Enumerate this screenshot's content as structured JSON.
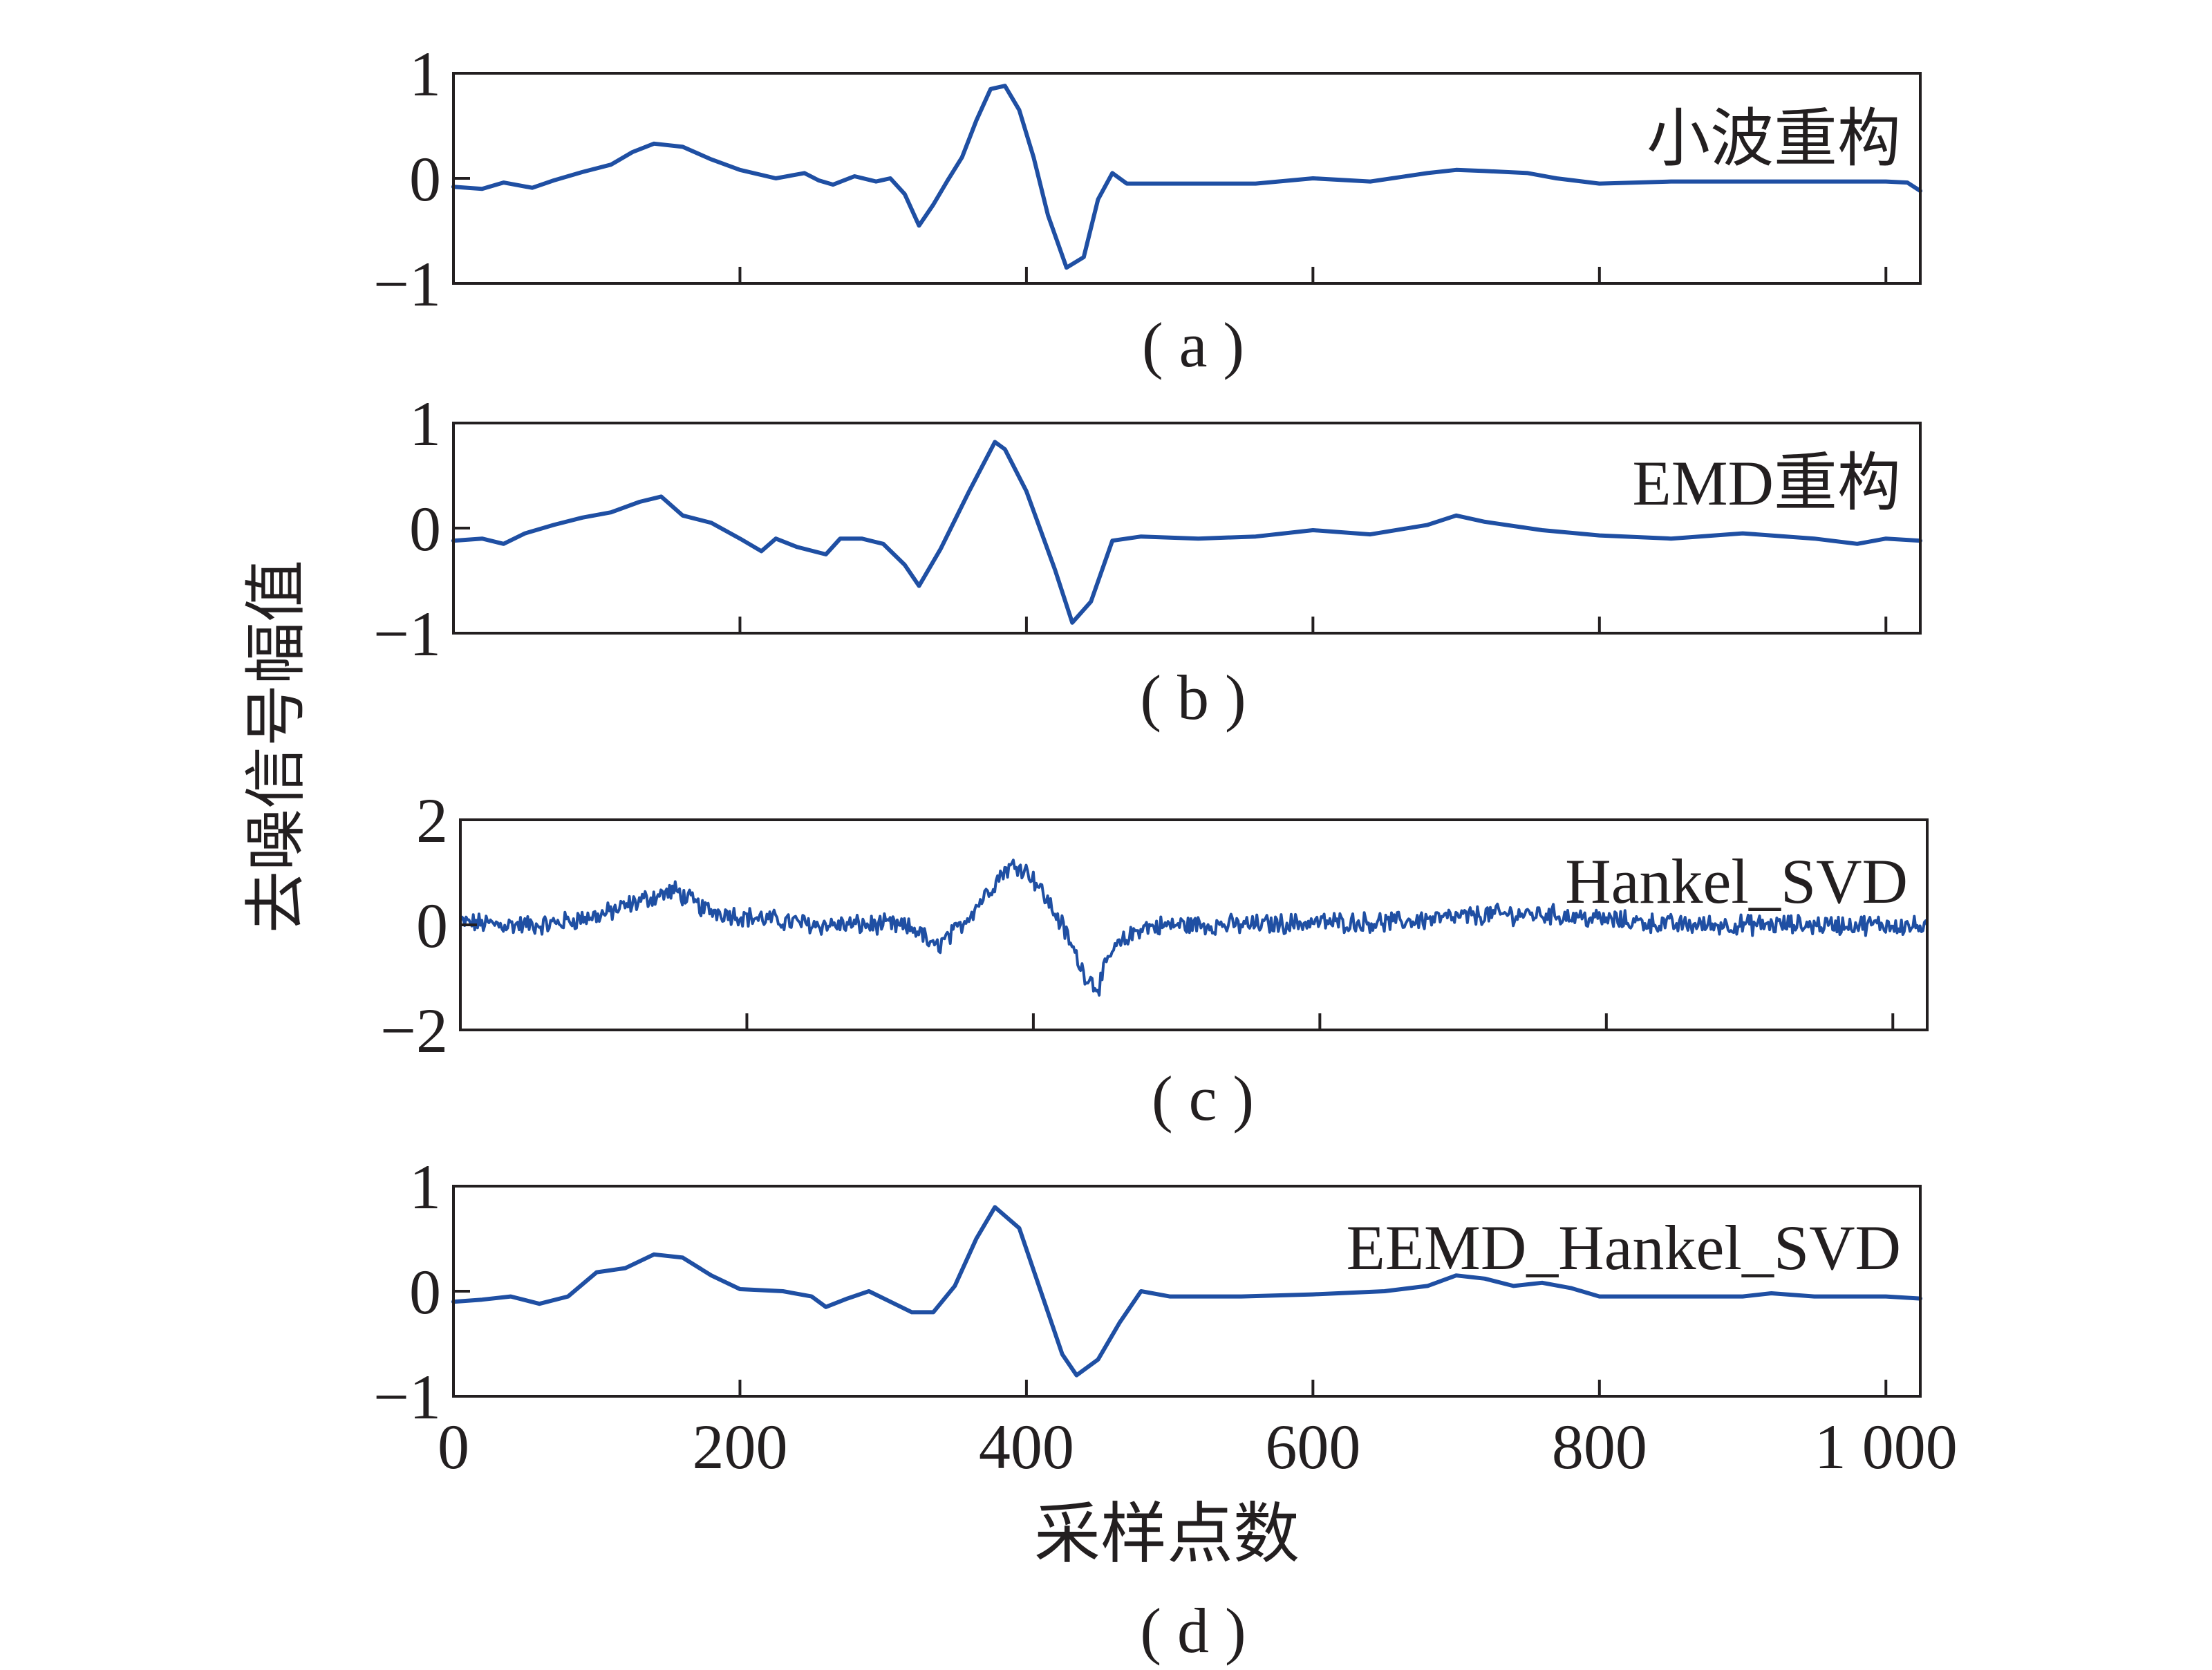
{
  "figure": {
    "xlabel": "采样点数",
    "ylabel": "去噪信号幅值",
    "line_color": "#1f4fa3"
  },
  "chart_data": [
    {
      "type": "line",
      "caption": "( a )",
      "title": "小波重构",
      "xlim": [
        0,
        1024
      ],
      "ylim": [
        -1,
        1
      ],
      "xticks": [
        0,
        200,
        400,
        600,
        800,
        1000
      ],
      "yticks": [
        -1,
        0,
        1
      ],
      "ytick_labels": [
        "−1",
        "0",
        "1"
      ],
      "noisy": false,
      "x": [
        0,
        20,
        35,
        55,
        70,
        90,
        110,
        125,
        140,
        160,
        180,
        200,
        225,
        245,
        255,
        265,
        280,
        295,
        305,
        315,
        325,
        335,
        345,
        355,
        365,
        375,
        385,
        395,
        405,
        415,
        428,
        440,
        450,
        460,
        470,
        490,
        520,
        560,
        600,
        640,
        680,
        700,
        720,
        750,
        770,
        800,
        850,
        900,
        950,
        1000,
        1015,
        1024
      ],
      "y": [
        -0.08,
        -0.1,
        -0.04,
        -0.09,
        -0.02,
        0.06,
        0.13,
        0.25,
        0.33,
        0.3,
        0.18,
        0.08,
        0.0,
        0.05,
        -0.02,
        -0.06,
        0.02,
        -0.03,
        0.0,
        -0.15,
        -0.45,
        -0.25,
        -0.02,
        0.2,
        0.55,
        0.85,
        0.88,
        0.65,
        0.2,
        -0.35,
        -0.85,
        -0.75,
        -0.2,
        0.05,
        -0.05,
        -0.05,
        -0.05,
        -0.05,
        0.0,
        -0.03,
        0.05,
        0.08,
        0.07,
        0.05,
        0.0,
        -0.05,
        -0.03,
        -0.03,
        -0.03,
        -0.03,
        -0.04,
        -0.12
      ]
    },
    {
      "type": "line",
      "caption": "( b )",
      "title": "EMD重构",
      "xlim": [
        0,
        1024
      ],
      "ylim": [
        -1,
        1
      ],
      "xticks": [
        0,
        200,
        400,
        600,
        800,
        1000
      ],
      "yticks": [
        -1,
        0,
        1
      ],
      "ytick_labels": [
        "−1",
        "0",
        "1"
      ],
      "noisy": false,
      "x": [
        0,
        20,
        35,
        50,
        70,
        90,
        110,
        130,
        145,
        160,
        180,
        200,
        215,
        225,
        240,
        260,
        270,
        285,
        300,
        315,
        325,
        340,
        360,
        378,
        385,
        400,
        420,
        432,
        445,
        460,
        480,
        520,
        560,
        600,
        640,
        680,
        700,
        720,
        760,
        800,
        850,
        900,
        950,
        980,
        1000,
        1024
      ],
      "y": [
        -0.12,
        -0.1,
        -0.15,
        -0.05,
        0.03,
        0.1,
        0.15,
        0.25,
        0.3,
        0.12,
        0.05,
        -0.1,
        -0.22,
        -0.1,
        -0.18,
        -0.25,
        -0.1,
        -0.1,
        -0.15,
        -0.35,
        -0.55,
        -0.2,
        0.35,
        0.82,
        0.75,
        0.35,
        -0.4,
        -0.9,
        -0.7,
        -0.12,
        -0.08,
        -0.1,
        -0.08,
        -0.02,
        -0.06,
        0.03,
        0.12,
        0.06,
        -0.02,
        -0.07,
        -0.1,
        -0.05,
        -0.1,
        -0.15,
        -0.1,
        -0.12
      ]
    },
    {
      "type": "line",
      "caption": "( c )",
      "title": "Hankel_SVD",
      "xlim": [
        0,
        1024
      ],
      "ylim": [
        -2,
        2
      ],
      "xticks": [
        0,
        200,
        400,
        600,
        800,
        1000
      ],
      "yticks": [
        -2,
        0,
        2
      ],
      "ytick_labels": [
        "−2",
        "0",
        "2"
      ],
      "noisy": true,
      "x": [
        0,
        30,
        60,
        100,
        130,
        150,
        170,
        200,
        250,
        300,
        320,
        330,
        345,
        360,
        380,
        390,
        400,
        420,
        435,
        445,
        455,
        475,
        500,
        550,
        600,
        650,
        700,
        720,
        760,
        800,
        850,
        900,
        950,
        1000,
        1024
      ],
      "y": [
        0.05,
        0.0,
        0.0,
        0.2,
        0.5,
        0.65,
        0.3,
        0.15,
        0.0,
        0.0,
        -0.1,
        -0.45,
        -0.15,
        0.35,
        1.05,
        1.15,
        0.9,
        0.0,
        -0.9,
        -1.2,
        -0.5,
        -0.05,
        0.0,
        0.0,
        0.05,
        0.05,
        0.15,
        0.2,
        0.2,
        0.1,
        0.0,
        0.0,
        0.0,
        0.0,
        -0.05
      ]
    },
    {
      "type": "line",
      "caption": "( d )",
      "title": "EEMD_Hankel_SVD",
      "xlim": [
        0,
        1024
      ],
      "ylim": [
        -1,
        1
      ],
      "xticks": [
        0,
        200,
        400,
        600,
        800,
        1000
      ],
      "xtick_labels": [
        "0",
        "200",
        "400",
        "600",
        "800",
        "1 000"
      ],
      "yticks": [
        -1,
        0,
        1
      ],
      "ytick_labels": [
        "−1",
        "0",
        "1"
      ],
      "noisy": false,
      "x": [
        0,
        20,
        40,
        60,
        80,
        100,
        120,
        140,
        160,
        180,
        200,
        230,
        250,
        260,
        275,
        290,
        305,
        320,
        335,
        350,
        365,
        378,
        395,
        410,
        425,
        435,
        450,
        465,
        480,
        500,
        550,
        600,
        650,
        680,
        700,
        720,
        740,
        760,
        780,
        800,
        850,
        900,
        920,
        950,
        1000,
        1024
      ],
      "y": [
        -0.1,
        -0.08,
        -0.05,
        -0.12,
        -0.05,
        0.18,
        0.22,
        0.35,
        0.32,
        0.15,
        0.02,
        0.0,
        -0.05,
        -0.15,
        -0.07,
        0.0,
        -0.1,
        -0.2,
        -0.2,
        0.05,
        0.5,
        0.8,
        0.6,
        0.0,
        -0.6,
        -0.8,
        -0.65,
        -0.3,
        0.0,
        -0.05,
        -0.05,
        -0.03,
        0.0,
        0.05,
        0.15,
        0.12,
        0.05,
        0.08,
        0.03,
        -0.05,
        -0.05,
        -0.05,
        -0.02,
        -0.05,
        -0.05,
        -0.07
      ]
    }
  ]
}
